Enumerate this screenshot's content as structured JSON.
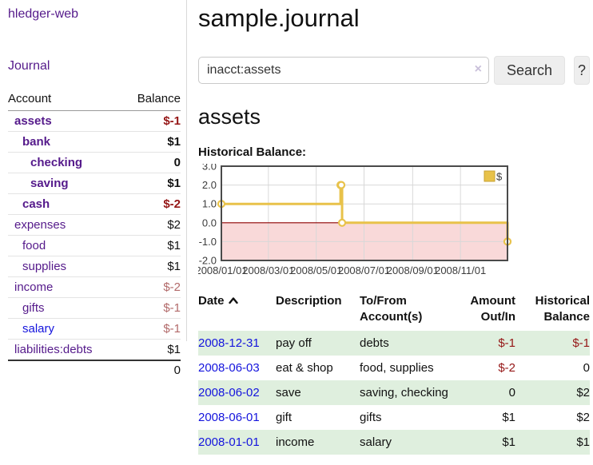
{
  "sidebar": {
    "app_title": "hledger-web",
    "journal_link": "Journal",
    "accounts_table": {
      "account_header": "Account",
      "balance_header": "Balance",
      "rows": [
        {
          "name": "assets",
          "level": 0,
          "bold": true,
          "balance": "$-1",
          "neg": "strong"
        },
        {
          "name": "bank",
          "level": 1,
          "bold": true,
          "balance": "$1",
          "neg": "none"
        },
        {
          "name": "checking",
          "level": 2,
          "bold": true,
          "balance": "0",
          "neg": "none"
        },
        {
          "name": "saving",
          "level": 2,
          "bold": true,
          "balance": "$1",
          "neg": "none"
        },
        {
          "name": "cash",
          "level": 1,
          "bold": true,
          "balance": "$-2",
          "neg": "strong"
        },
        {
          "name": "expenses",
          "level": 0,
          "bold": false,
          "balance": "$2",
          "neg": "none"
        },
        {
          "name": "food",
          "level": 1,
          "bold": false,
          "balance": "$1",
          "neg": "none"
        },
        {
          "name": "supplies",
          "level": 1,
          "bold": false,
          "balance": "$1",
          "neg": "none"
        },
        {
          "name": "income",
          "level": 0,
          "bold": false,
          "balance": "$-2",
          "neg": "muted"
        },
        {
          "name": "gifts",
          "level": 1,
          "bold": false,
          "balance": "$-1",
          "neg": "muted"
        },
        {
          "name": "salary",
          "level": 1,
          "bold": false,
          "balance": "$-1",
          "neg": "muted",
          "link": "blue"
        },
        {
          "name": "liabilities:debts",
          "level": 0,
          "bold": false,
          "balance": "$1",
          "neg": "none"
        }
      ],
      "total": "0"
    }
  },
  "main": {
    "page_title": "sample.journal",
    "search": {
      "value": "inacct:assets",
      "clear_icon": "×",
      "search_button": "Search",
      "help_button": "?"
    },
    "account_heading": "assets",
    "chart_heading": "Historical Balance:"
  },
  "chart_data": {
    "type": "line",
    "style": "step-after",
    "title": "Historical Balance:",
    "series": [
      {
        "name": "$",
        "points": [
          {
            "date": "2008-01-01",
            "value": 1
          },
          {
            "date": "2008-06-01",
            "value": 2
          },
          {
            "date": "2008-06-02",
            "value": 2
          },
          {
            "date": "2008-06-03",
            "value": 0
          },
          {
            "date": "2008-12-31",
            "value": -1
          }
        ]
      }
    ],
    "x_range": [
      "2008-01-01",
      "2008-12-31"
    ],
    "y_range": [
      -2,
      3
    ],
    "y_ticks": [
      {
        "value": 3,
        "label": "3.0"
      },
      {
        "value": 2,
        "label": "2.0"
      },
      {
        "value": 1,
        "label": "1.0"
      },
      {
        "value": 0,
        "label": "0.0"
      },
      {
        "value": -1,
        "label": "-1.0"
      },
      {
        "value": -2,
        "label": "-2.0"
      }
    ],
    "x_ticks": [
      {
        "date": "2008-01-01",
        "label": "2008/01/01"
      },
      {
        "date": "2008-03-01",
        "label": "2008/03/01"
      },
      {
        "date": "2008-05-01",
        "label": "2008/05/01"
      },
      {
        "date": "2008-07-01",
        "label": "2008/07/01"
      },
      {
        "date": "2008-09-01",
        "label": "2008/09/01"
      },
      {
        "date": "2008-11-01",
        "label": "2008/11/01"
      }
    ],
    "legend": {
      "label": "$",
      "position": "top-right"
    },
    "grid": true,
    "negative_region_shaded": true,
    "colors": {
      "line": "#e8c24a",
      "line_border": "#c7a133",
      "marker_fill": "#ffffff",
      "negative_fill": "#f9d9d9",
      "zero_line": "#8e0000",
      "grid": "#d8d8d8",
      "border": "#4a4a4a"
    }
  },
  "transactions": {
    "headers": {
      "date": "Date",
      "description": "Description",
      "accounts": "To/From\nAccount(s)",
      "amount": "Amount\nOut/In",
      "balance": "Historical\nBalance"
    },
    "rows": [
      {
        "date": "2008-12-31",
        "description": "pay off",
        "accounts": "debts",
        "amount": "$-1",
        "amount_neg": true,
        "balance": "$-1",
        "balance_neg": true
      },
      {
        "date": "2008-06-03",
        "description": "eat & shop",
        "accounts": "food, supplies",
        "amount": "$-2",
        "amount_neg": true,
        "balance": "0",
        "balance_neg": false
      },
      {
        "date": "2008-06-02",
        "description": "save",
        "accounts": "saving, checking",
        "amount": "0",
        "amount_neg": false,
        "balance": "$2",
        "balance_neg": false
      },
      {
        "date": "2008-06-01",
        "description": "gift",
        "accounts": "gifts",
        "amount": "$1",
        "amount_neg": false,
        "balance": "$2",
        "balance_neg": false
      },
      {
        "date": "2008-01-01",
        "description": "income",
        "accounts": "salary",
        "amount": "$1",
        "amount_neg": false,
        "balance": "$1",
        "balance_neg": false
      }
    ]
  }
}
